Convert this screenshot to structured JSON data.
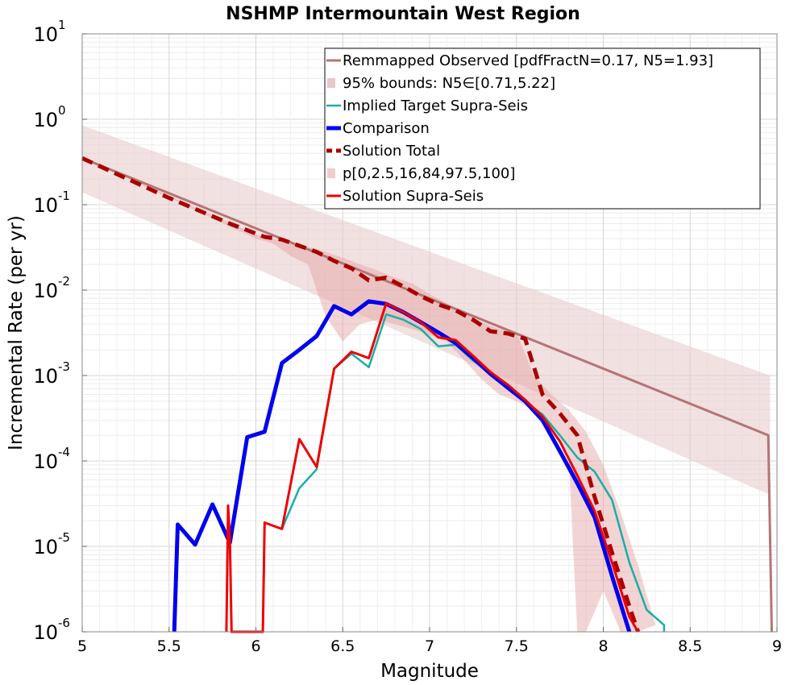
{
  "chart_data": {
    "type": "line",
    "title": "NSHMP Intermountain West Region",
    "xlabel": "Magnitude",
    "ylabel": "Incremental Rate (per yr)",
    "xlim": [
      5,
      9
    ],
    "ylim": [
      1e-06,
      10
    ],
    "yscale": "log",
    "grid": true,
    "legend_position": "top-right",
    "xticks": [
      "5",
      "5.5",
      "6",
      "6.5",
      "7",
      "7.5",
      "8",
      "8.5",
      "9"
    ],
    "yticks": [
      {
        "base": "10",
        "exp": "-6"
      },
      {
        "base": "10",
        "exp": "-5"
      },
      {
        "base": "10",
        "exp": "-4"
      },
      {
        "base": "10",
        "exp": "-3"
      },
      {
        "base": "10",
        "exp": "-2"
      },
      {
        "base": "10",
        "exp": "-1"
      },
      {
        "base": "10",
        "exp": "0"
      },
      {
        "base": "10",
        "exp": "1"
      }
    ],
    "bands": [
      {
        "name": "95% bounds: N5∈[0.71,5.22]",
        "color": "#e6c8c8",
        "opacity": 0.55,
        "x": [
          5.0,
          9.0,
          8.96,
          8.96
        ],
        "upper_x": [
          5.0,
          8.96
        ],
        "upper_y": [
          0.85,
          0.001
        ],
        "lower_x": [
          5.0,
          8.96
        ],
        "lower_y": [
          0.14,
          4e-05
        ]
      },
      {
        "name": "p[0,2.5,16,84,97.5,100]",
        "color": "#e4a0a0",
        "opacity": 0.45,
        "upper_x": [
          5.0,
          6.0,
          6.1,
          6.2,
          6.3,
          6.4,
          6.5,
          6.6,
          6.7,
          6.8,
          6.9,
          7.0,
          7.1,
          7.2,
          7.3,
          7.4,
          7.5,
          7.6,
          7.7,
          7.8,
          7.9,
          8.0,
          8.1,
          8.2,
          8.3
        ],
        "upper_y": [
          0.36,
          0.045,
          0.04,
          0.035,
          0.032,
          0.028,
          0.024,
          0.02,
          0.017,
          0.014,
          0.012,
          0.009,
          0.007,
          0.0055,
          0.0042,
          0.0035,
          0.0032,
          0.001,
          0.0006,
          0.0004,
          0.00022,
          9e-05,
          2.5e-05,
          6e-06,
          1.2e-06
        ],
        "lower_x": [
          5.0,
          6.0,
          6.1,
          6.2,
          6.3,
          6.4,
          6.5,
          6.6,
          6.7,
          6.8,
          6.9,
          7.0,
          7.1,
          7.2,
          7.3,
          7.4,
          7.5,
          7.6,
          7.7,
          7.8,
          7.85,
          7.9,
          8.0,
          8.1,
          8.2
        ],
        "lower_y": [
          0.36,
          0.04,
          0.035,
          0.025,
          0.02,
          0.005,
          0.0025,
          0.004,
          0.0045,
          0.004,
          0.0035,
          0.003,
          0.0025,
          0.0015,
          0.0009,
          0.0006,
          0.0005,
          0.0004,
          0.00025,
          0.00012,
          1e-06,
          1e-06,
          3e-06,
          1e-06,
          1e-06
        ]
      }
    ],
    "series": [
      {
        "name": "Remmapped Observed [pdfFractN=0.17, N5=1.93]",
        "color": "#b57474",
        "width": 3,
        "dash": "",
        "x": [
          5.0,
          8.95,
          8.97
        ],
        "y": [
          0.35,
          0.0002,
          1e-06
        ]
      },
      {
        "name": "Implied Target Supra-Seis",
        "color": "#1aaea6",
        "width": 2.5,
        "dash": "",
        "x": [
          6.15,
          6.25,
          6.35,
          6.45,
          6.55,
          6.65,
          6.75,
          6.85,
          6.95,
          7.05,
          7.15,
          7.25,
          7.35,
          7.45,
          7.55,
          7.65,
          7.75,
          7.85,
          7.95,
          8.05,
          8.15,
          8.25,
          8.35,
          8.35
        ],
        "y": [
          1.6e-05,
          4.8e-05,
          8e-05,
          0.0012,
          0.0018,
          0.00125,
          0.0052,
          0.0045,
          0.0035,
          0.0022,
          0.0023,
          0.0015,
          0.0011,
          0.00075,
          0.0005,
          0.00035,
          0.0002,
          0.00011,
          7.5e-05,
          3.5e-05,
          6.5e-06,
          1.8e-06,
          1.2e-06,
          1e-06
        ]
      },
      {
        "name": "Comparison",
        "color": "#0000ee",
        "width": 5,
        "dash": "",
        "x": [
          5.53,
          5.55,
          5.65,
          5.75,
          5.85,
          5.95,
          6.05,
          6.15,
          6.25,
          6.35,
          6.45,
          6.55,
          6.65,
          6.75,
          6.85,
          6.95,
          7.05,
          7.15,
          7.25,
          7.35,
          7.45,
          7.55,
          7.65,
          7.75,
          7.85,
          7.95,
          8.05,
          8.15
        ],
        "y": [
          1e-06,
          1.8e-05,
          1.05e-05,
          3.1e-05,
          1.1e-05,
          0.00019,
          0.00022,
          0.0014,
          0.002,
          0.0029,
          0.0065,
          0.0052,
          0.0074,
          0.0069,
          0.0055,
          0.0042,
          0.0032,
          0.0024,
          0.0016,
          0.00105,
          0.00072,
          0.0005,
          0.0003,
          0.00013,
          5.5e-05,
          2.2e-05,
          4.5e-06,
          1e-06
        ]
      },
      {
        "name": "Solution Total",
        "color": "#aa0000",
        "width": 5,
        "dash": "14,8",
        "x": [
          5.0,
          5.5,
          5.85,
          6.05,
          6.15,
          6.25,
          6.35,
          6.45,
          6.55,
          6.65,
          6.75,
          6.85,
          6.95,
          7.05,
          7.15,
          7.25,
          7.35,
          7.45,
          7.55,
          7.65,
          7.75,
          7.85,
          7.95,
          8.05,
          8.15,
          8.2
        ],
        "y": [
          0.35,
          0.12,
          0.06,
          0.042,
          0.039,
          0.033,
          0.028,
          0.022,
          0.018,
          0.013,
          0.014,
          0.011,
          0.0085,
          0.0068,
          0.0058,
          0.0045,
          0.0033,
          0.0031,
          0.0027,
          0.0006,
          0.00036,
          0.0002,
          3.8e-05,
          8.5e-06,
          2e-06,
          1e-06
        ]
      },
      {
        "name": "Solution Supra-Seis",
        "color": "#ee0000",
        "width": 3,
        "dash": "",
        "x": [
          5.83,
          5.84,
          5.85,
          5.86,
          6.04,
          6.05,
          6.15,
          6.25,
          6.35,
          6.45,
          6.55,
          6.65,
          6.75,
          6.85,
          6.95,
          7.05,
          7.15,
          7.25,
          7.35,
          7.45,
          7.55,
          7.65,
          7.75,
          7.85,
          7.95,
          8.05,
          8.15,
          8.2
        ],
        "y": [
          1e-06,
          3e-05,
          1.2e-05,
          1e-06,
          1e-06,
          1.9e-05,
          1.6e-05,
          0.00018,
          8.5e-05,
          0.0012,
          0.0019,
          0.0016,
          0.007,
          0.0055,
          0.0042,
          0.0028,
          0.0026,
          0.0017,
          0.0011,
          0.00078,
          0.00052,
          0.00033,
          0.00017,
          6.8e-05,
          2.6e-05,
          6.5e-06,
          1.5e-06,
          1e-06
        ]
      }
    ],
    "legend": [
      {
        "label": "Remmapped Observed [pdfFractN=0.17, N5=1.93]",
        "kind": "line",
        "color": "#b57474",
        "width": 3,
        "dash": ""
      },
      {
        "label": "95% bounds: N5∈[0.71,5.22]",
        "kind": "band",
        "color": "#e6c8c8",
        "width": 0,
        "dash": ""
      },
      {
        "label": "Implied Target Supra-Seis",
        "kind": "line",
        "color": "#1aaea6",
        "width": 2.5,
        "dash": ""
      },
      {
        "label": "Comparison",
        "kind": "line",
        "color": "#0000ee",
        "width": 5,
        "dash": ""
      },
      {
        "label": "Solution Total",
        "kind": "line",
        "color": "#aa0000",
        "width": 5,
        "dash": "7,5"
      },
      {
        "label": "p[0,2.5,16,84,97.5,100]",
        "kind": "band",
        "color": "#f0cccc",
        "width": 0,
        "dash": ""
      },
      {
        "label": "Solution Supra-Seis",
        "kind": "line",
        "color": "#ee0000",
        "width": 3,
        "dash": ""
      }
    ]
  }
}
